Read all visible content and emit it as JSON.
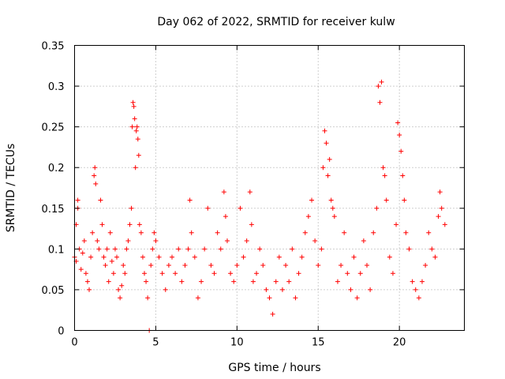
{
  "chart_data": {
    "type": "scatter",
    "title": "Day 062 of 2022, SRMTID for receiver kulw",
    "xlabel": "GPS time / hours",
    "ylabel": "SRMTID / TECUs",
    "xlim": [
      0,
      24
    ],
    "ylim": [
      0,
      0.35
    ],
    "x_ticks": [
      0,
      5,
      10,
      15,
      20
    ],
    "y_ticks": [
      0,
      0.05,
      0.1,
      0.15,
      0.2,
      0.25,
      0.3,
      0.35
    ],
    "x_tick_labels": [
      "0",
      "5",
      "10",
      "15",
      "20"
    ],
    "y_tick_labels": [
      "0",
      "0.05",
      "0.1",
      "0.15",
      "0.2",
      "0.25",
      "0.3",
      "0.35"
    ],
    "grid": true,
    "marker": "+",
    "color": "#ff0000",
    "series": [
      {
        "name": "SRMTID",
        "points": [
          [
            0.0,
            0.09
          ],
          [
            0.1,
            0.085
          ],
          [
            0.1,
            0.13
          ],
          [
            0.2,
            0.16
          ],
          [
            0.2,
            0.15
          ],
          [
            0.3,
            0.1
          ],
          [
            0.4,
            0.075
          ],
          [
            0.5,
            0.095
          ],
          [
            0.6,
            0.11
          ],
          [
            0.7,
            0.07
          ],
          [
            0.8,
            0.06
          ],
          [
            0.9,
            0.05
          ],
          [
            1.0,
            0.09
          ],
          [
            1.1,
            0.12
          ],
          [
            1.2,
            0.19
          ],
          [
            1.25,
            0.2
          ],
          [
            1.3,
            0.18
          ],
          [
            1.4,
            0.11
          ],
          [
            1.5,
            0.1
          ],
          [
            1.6,
            0.16
          ],
          [
            1.7,
            0.13
          ],
          [
            1.8,
            0.09
          ],
          [
            1.9,
            0.08
          ],
          [
            2.0,
            0.1
          ],
          [
            2.1,
            0.06
          ],
          [
            2.2,
            0.12
          ],
          [
            2.3,
            0.085
          ],
          [
            2.4,
            0.07
          ],
          [
            2.5,
            0.1
          ],
          [
            2.6,
            0.09
          ],
          [
            2.7,
            0.05
          ],
          [
            2.8,
            0.04
          ],
          [
            2.9,
            0.055
          ],
          [
            3.0,
            0.08
          ],
          [
            3.1,
            0.07
          ],
          [
            3.2,
            0.1
          ],
          [
            3.3,
            0.11
          ],
          [
            3.4,
            0.13
          ],
          [
            3.5,
            0.15
          ],
          [
            3.55,
            0.25
          ],
          [
            3.6,
            0.28
          ],
          [
            3.65,
            0.275
          ],
          [
            3.7,
            0.26
          ],
          [
            3.75,
            0.2
          ],
          [
            3.8,
            0.245
          ],
          [
            3.85,
            0.25
          ],
          [
            3.9,
            0.235
          ],
          [
            3.95,
            0.215
          ],
          [
            4.0,
            0.13
          ],
          [
            4.1,
            0.12
          ],
          [
            4.2,
            0.09
          ],
          [
            4.3,
            0.07
          ],
          [
            4.4,
            0.06
          ],
          [
            4.5,
            0.04
          ],
          [
            4.6,
            0.0
          ],
          [
            4.7,
            0.08
          ],
          [
            4.8,
            0.1
          ],
          [
            4.9,
            0.12
          ],
          [
            5.0,
            0.11
          ],
          [
            5.2,
            0.09
          ],
          [
            5.4,
            0.07
          ],
          [
            5.6,
            0.05
          ],
          [
            5.8,
            0.08
          ],
          [
            6.0,
            0.09
          ],
          [
            6.2,
            0.07
          ],
          [
            6.4,
            0.1
          ],
          [
            6.6,
            0.06
          ],
          [
            6.8,
            0.08
          ],
          [
            7.0,
            0.1
          ],
          [
            7.1,
            0.16
          ],
          [
            7.2,
            0.12
          ],
          [
            7.4,
            0.09
          ],
          [
            7.6,
            0.04
          ],
          [
            7.8,
            0.06
          ],
          [
            8.0,
            0.1
          ],
          [
            8.2,
            0.15
          ],
          [
            8.4,
            0.08
          ],
          [
            8.6,
            0.07
          ],
          [
            8.8,
            0.12
          ],
          [
            9.0,
            0.1
          ],
          [
            9.2,
            0.17
          ],
          [
            9.3,
            0.14
          ],
          [
            9.4,
            0.11
          ],
          [
            9.6,
            0.07
          ],
          [
            9.8,
            0.06
          ],
          [
            10.0,
            0.08
          ],
          [
            10.2,
            0.15
          ],
          [
            10.4,
            0.09
          ],
          [
            10.6,
            0.11
          ],
          [
            10.8,
            0.17
          ],
          [
            10.9,
            0.13
          ],
          [
            11.0,
            0.06
          ],
          [
            11.2,
            0.07
          ],
          [
            11.4,
            0.1
          ],
          [
            11.6,
            0.08
          ],
          [
            11.8,
            0.05
          ],
          [
            12.0,
            0.04
          ],
          [
            12.2,
            0.02
          ],
          [
            12.4,
            0.06
          ],
          [
            12.6,
            0.09
          ],
          [
            12.8,
            0.05
          ],
          [
            13.0,
            0.08
          ],
          [
            13.2,
            0.06
          ],
          [
            13.4,
            0.1
          ],
          [
            13.6,
            0.04
          ],
          [
            13.8,
            0.07
          ],
          [
            14.0,
            0.09
          ],
          [
            14.2,
            0.12
          ],
          [
            14.4,
            0.14
          ],
          [
            14.6,
            0.16
          ],
          [
            14.8,
            0.11
          ],
          [
            15.0,
            0.08
          ],
          [
            15.2,
            0.1
          ],
          [
            15.3,
            0.2
          ],
          [
            15.4,
            0.245
          ],
          [
            15.5,
            0.23
          ],
          [
            15.6,
            0.19
          ],
          [
            15.7,
            0.21
          ],
          [
            15.8,
            0.16
          ],
          [
            15.9,
            0.15
          ],
          [
            16.0,
            0.14
          ],
          [
            16.2,
            0.06
          ],
          [
            16.4,
            0.08
          ],
          [
            16.6,
            0.12
          ],
          [
            16.8,
            0.07
          ],
          [
            17.0,
            0.05
          ],
          [
            17.2,
            0.09
          ],
          [
            17.4,
            0.04
          ],
          [
            17.6,
            0.07
          ],
          [
            17.8,
            0.11
          ],
          [
            18.0,
            0.08
          ],
          [
            18.2,
            0.05
          ],
          [
            18.4,
            0.12
          ],
          [
            18.6,
            0.15
          ],
          [
            18.7,
            0.3
          ],
          [
            18.8,
            0.28
          ],
          [
            18.9,
            0.305
          ],
          [
            19.0,
            0.2
          ],
          [
            19.1,
            0.19
          ],
          [
            19.2,
            0.16
          ],
          [
            19.4,
            0.09
          ],
          [
            19.6,
            0.07
          ],
          [
            19.8,
            0.13
          ],
          [
            19.9,
            0.255
          ],
          [
            20.0,
            0.24
          ],
          [
            20.1,
            0.22
          ],
          [
            20.2,
            0.19
          ],
          [
            20.3,
            0.16
          ],
          [
            20.4,
            0.12
          ],
          [
            20.6,
            0.1
          ],
          [
            20.8,
            0.06
          ],
          [
            21.0,
            0.05
          ],
          [
            21.2,
            0.04
          ],
          [
            21.4,
            0.06
          ],
          [
            21.6,
            0.08
          ],
          [
            21.8,
            0.12
          ],
          [
            22.0,
            0.1
          ],
          [
            22.2,
            0.09
          ],
          [
            22.4,
            0.14
          ],
          [
            22.5,
            0.17
          ],
          [
            22.6,
            0.15
          ],
          [
            22.8,
            0.13
          ]
        ]
      }
    ]
  }
}
